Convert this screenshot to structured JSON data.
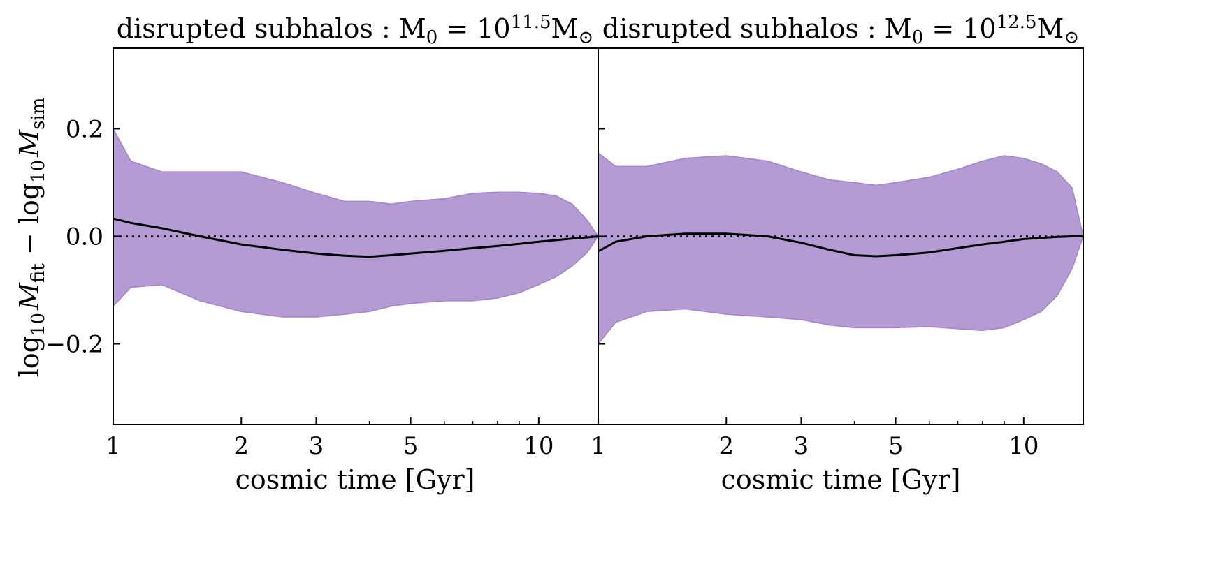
{
  "colors": {
    "band_fill": "#b49bd3",
    "band_edge": "#a583cc",
    "median_line": "#000000",
    "reference_line": "#000000"
  },
  "shared_ylabel": {
    "main": "log",
    "sub1": "10",
    "m1": "M",
    "s1": "fit",
    "minus": " − log",
    "sub2": "10",
    "m2": "M",
    "s2": "sim"
  },
  "chart_data": [
    {
      "type": "area",
      "title": {
        "text": "disrupted subhalos :  M",
        "sub": "0",
        "eq": " = 10",
        "exp": "11.5",
        "unit": "M",
        "unit_sub": "⊙"
      },
      "xlabel": "cosmic time [Gyr]",
      "xscale": "log",
      "xlim": [
        1,
        13.8
      ],
      "ylim": [
        -0.35,
        0.35
      ],
      "xticks": [
        {
          "v": 1,
          "label": "1"
        },
        {
          "v": 2,
          "label": "2"
        },
        {
          "v": 3,
          "label": "3"
        },
        {
          "v": 5,
          "label": "5"
        },
        {
          "v": 10,
          "label": "10"
        }
      ],
      "yticks": [
        {
          "v": 0.2,
          "label": "0.2"
        },
        {
          "v": 0.0,
          "label": "0.0"
        },
        {
          "v": -0.2,
          "label": "−0.2"
        }
      ],
      "reference_y": 0.0,
      "x": [
        1.0,
        1.1,
        1.3,
        1.6,
        2.0,
        2.5,
        3.0,
        3.5,
        4.0,
        4.5,
        5.0,
        6.0,
        7.0,
        8.0,
        9.0,
        10.0,
        11.0,
        12.0,
        13.0,
        13.8
      ],
      "upper": [
        0.2,
        0.14,
        0.12,
        0.12,
        0.12,
        0.1,
        0.08,
        0.065,
        0.065,
        0.06,
        0.065,
        0.07,
        0.08,
        0.082,
        0.082,
        0.08,
        0.075,
        0.06,
        0.03,
        0.0
      ],
      "median": [
        0.033,
        0.025,
        0.015,
        0.0,
        -0.015,
        -0.025,
        -0.032,
        -0.036,
        -0.038,
        -0.035,
        -0.032,
        -0.027,
        -0.022,
        -0.018,
        -0.014,
        -0.01,
        -0.007,
        -0.004,
        -0.002,
        0.0
      ],
      "lower": [
        -0.13,
        -0.095,
        -0.09,
        -0.12,
        -0.14,
        -0.15,
        -0.15,
        -0.145,
        -0.14,
        -0.13,
        -0.125,
        -0.12,
        -0.12,
        -0.115,
        -0.105,
        -0.09,
        -0.075,
        -0.055,
        -0.03,
        0.0
      ]
    },
    {
      "type": "area",
      "title": {
        "text": "disrupted subhalos :  M",
        "sub": "0",
        "eq": " = 10",
        "exp": "12.5",
        "unit": "M",
        "unit_sub": "⊙"
      },
      "xlabel": "cosmic time [Gyr]",
      "xscale": "log",
      "xlim": [
        1,
        13.8
      ],
      "ylim": [
        -0.35,
        0.35
      ],
      "xticks": [
        {
          "v": 1,
          "label": "1"
        },
        {
          "v": 2,
          "label": "2"
        },
        {
          "v": 3,
          "label": "3"
        },
        {
          "v": 5,
          "label": "5"
        },
        {
          "v": 10,
          "label": "10"
        }
      ],
      "yticks": [
        {
          "v": 0.2,
          "label": ""
        },
        {
          "v": 0.0,
          "label": ""
        },
        {
          "v": -0.2,
          "label": ""
        }
      ],
      "reference_y": 0.0,
      "x": [
        1.0,
        1.1,
        1.3,
        1.6,
        2.0,
        2.5,
        3.0,
        3.5,
        4.0,
        4.5,
        5.0,
        6.0,
        7.0,
        8.0,
        9.0,
        10.0,
        11.0,
        12.0,
        13.0,
        13.8
      ],
      "upper": [
        0.155,
        0.13,
        0.13,
        0.145,
        0.15,
        0.14,
        0.12,
        0.105,
        0.1,
        0.095,
        0.1,
        0.11,
        0.125,
        0.14,
        0.15,
        0.145,
        0.135,
        0.12,
        0.09,
        0.0
      ],
      "median": [
        -0.028,
        -0.01,
        0.0,
        0.005,
        0.005,
        0.0,
        -0.012,
        -0.025,
        -0.035,
        -0.037,
        -0.035,
        -0.03,
        -0.022,
        -0.015,
        -0.01,
        -0.005,
        -0.003,
        -0.001,
        0.0,
        0.0
      ],
      "lower": [
        -0.2,
        -0.16,
        -0.14,
        -0.135,
        -0.145,
        -0.15,
        -0.155,
        -0.165,
        -0.17,
        -0.17,
        -0.17,
        -0.168,
        -0.172,
        -0.175,
        -0.17,
        -0.155,
        -0.14,
        -0.11,
        -0.06,
        0.0
      ]
    }
  ]
}
